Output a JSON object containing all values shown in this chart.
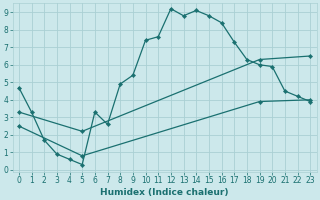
{
  "xlabel": "Humidex (Indice chaleur)",
  "xlim": [
    -0.5,
    23.5
  ],
  "ylim": [
    -0.1,
    9.5
  ],
  "xticks": [
    0,
    1,
    2,
    3,
    4,
    5,
    6,
    7,
    8,
    9,
    10,
    11,
    12,
    13,
    14,
    15,
    16,
    17,
    18,
    19,
    20,
    21,
    22,
    23
  ],
  "yticks": [
    0,
    1,
    2,
    3,
    4,
    5,
    6,
    7,
    8,
    9
  ],
  "bg_color": "#cce8eb",
  "grid_color": "#aad0d4",
  "line_color": "#1a7070",
  "line1_x": [
    0,
    1,
    2,
    3,
    4,
    5,
    6,
    7,
    8,
    9,
    10,
    11,
    12,
    13,
    14,
    15,
    16,
    17,
    18,
    19,
    20,
    21,
    22,
    23
  ],
  "line1_y": [
    4.7,
    3.3,
    1.7,
    0.9,
    0.6,
    0.3,
    3.3,
    2.6,
    4.9,
    5.4,
    7.4,
    7.6,
    9.2,
    8.8,
    9.1,
    8.8,
    8.4,
    7.3,
    6.3,
    6.0,
    5.9,
    4.5,
    4.2,
    3.9
  ],
  "line2_x": [
    0,
    5,
    19,
    23
  ],
  "line2_y": [
    3.3,
    2.2,
    6.3,
    6.5
  ],
  "line3_x": [
    0,
    5,
    19,
    23
  ],
  "line3_y": [
    2.5,
    0.8,
    3.9,
    4.0
  ]
}
